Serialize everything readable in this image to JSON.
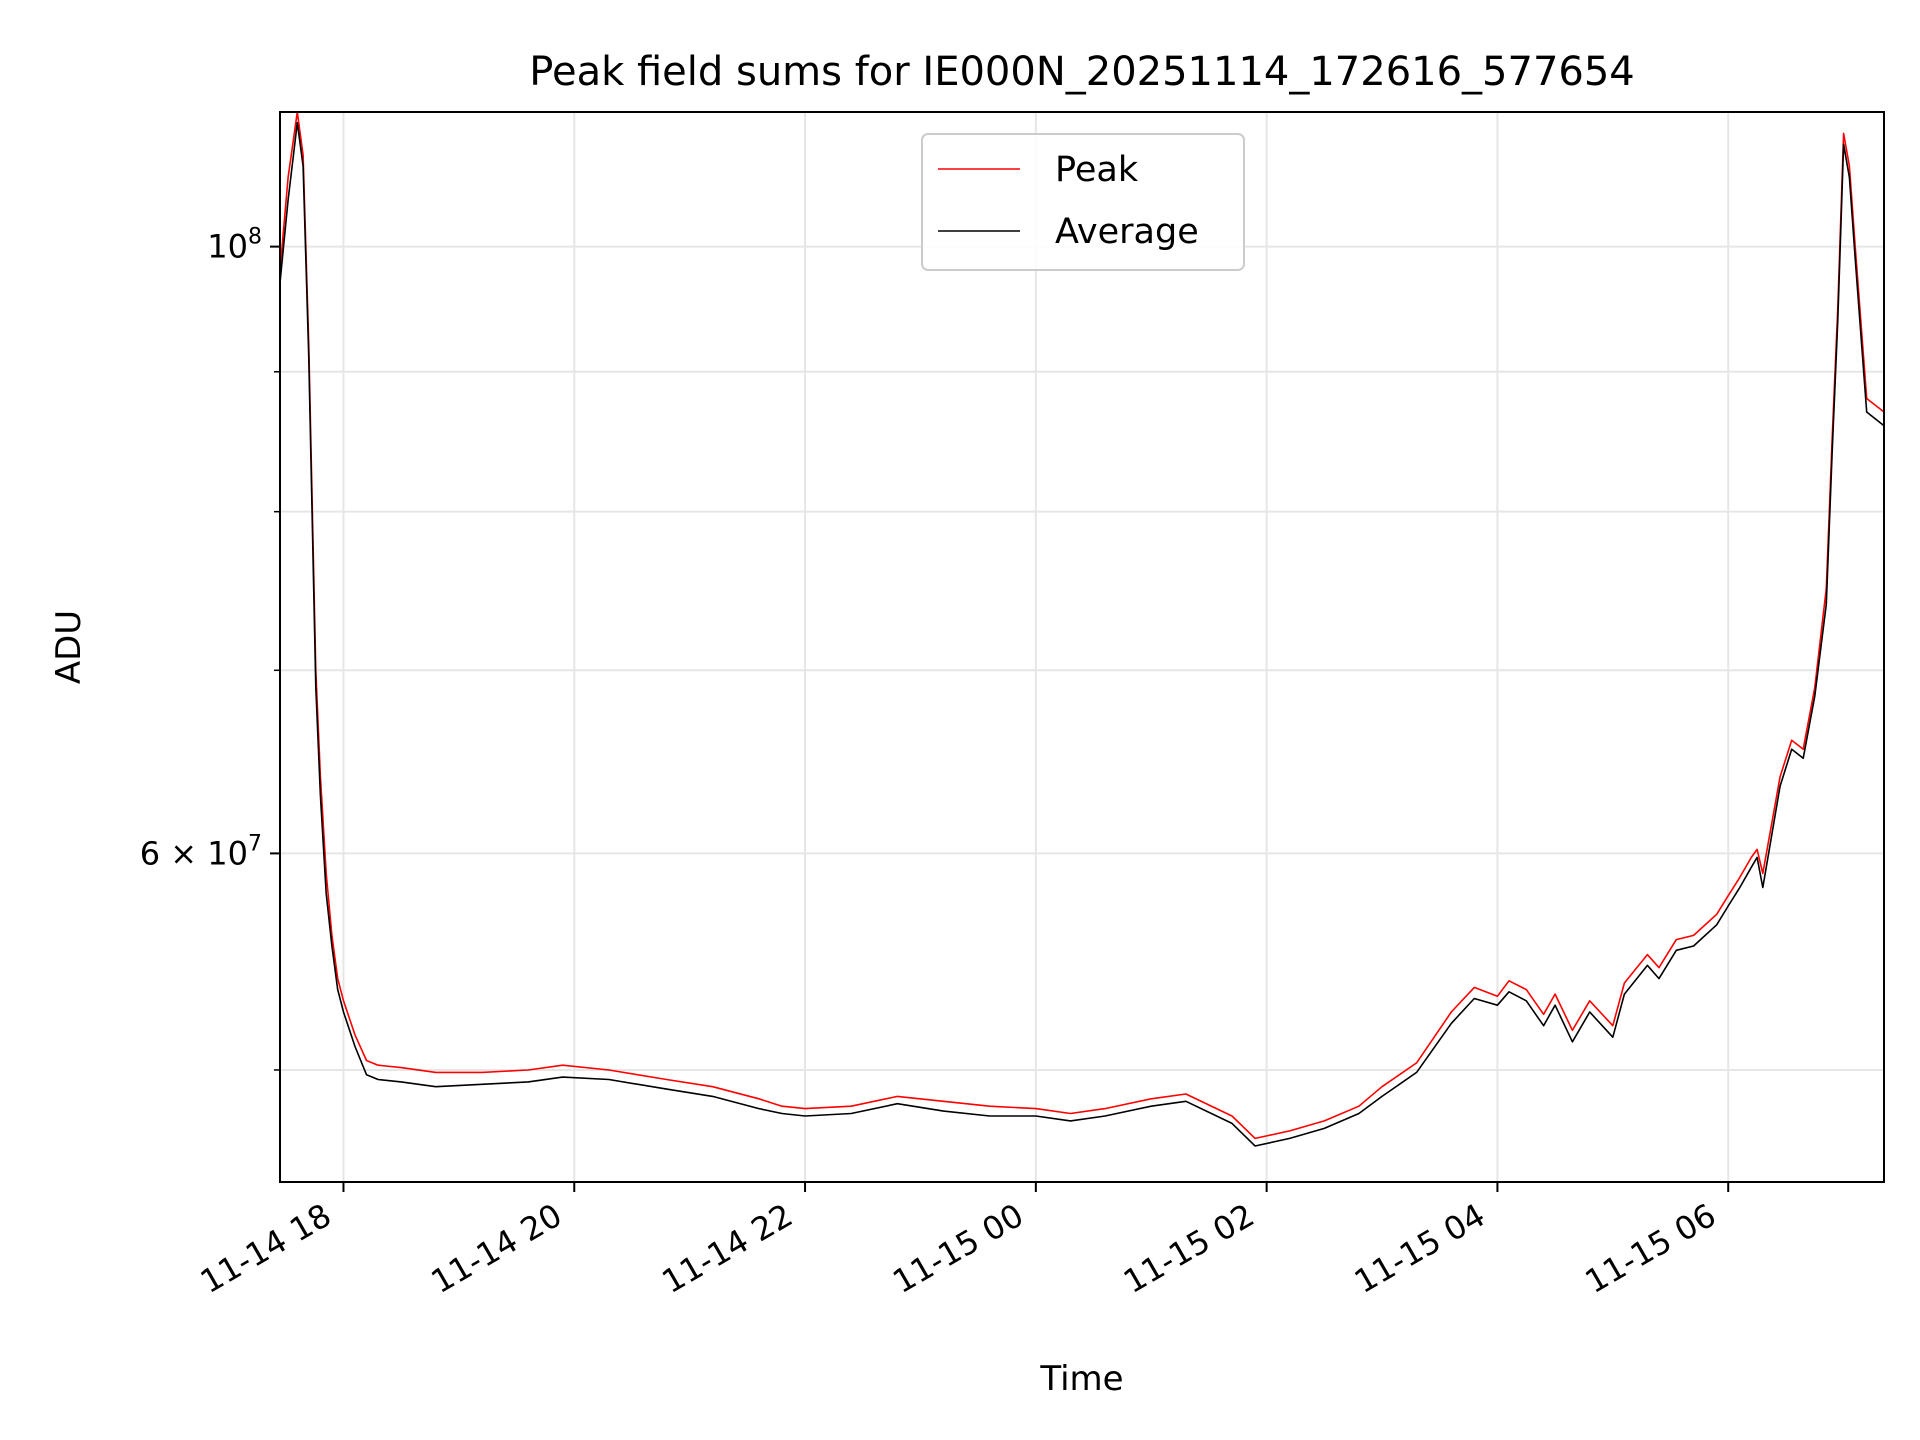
{
  "chart_data": {
    "type": "line",
    "title": "Peak field sums for IE000N_20251114_172616_577654",
    "xlabel": "Time",
    "ylabel": "ADU",
    "yscale": "log",
    "grid": true,
    "legend_position": "top-center",
    "x_unit": "hours since 11-14 00:00",
    "xlim": [
      17.45,
      31.35
    ],
    "ylim": [
      45500000,
      112000000
    ],
    "x_ticks": [
      {
        "value": 18,
        "label": "11-14 18"
      },
      {
        "value": 20,
        "label": "11-14 20"
      },
      {
        "value": 22,
        "label": "11-14 22"
      },
      {
        "value": 24,
        "label": "11-15 00"
      },
      {
        "value": 26,
        "label": "11-15 02"
      },
      {
        "value": 28,
        "label": "11-15 04"
      },
      {
        "value": 30,
        "label": "11-15 06"
      }
    ],
    "y_major_ticks": [
      {
        "value": 60000000,
        "base": "6",
        "times": "×",
        "pow": "10",
        "exp": "7"
      },
      {
        "value": 100000000,
        "base": "",
        "times": "",
        "pow": "10",
        "exp": "8"
      }
    ],
    "y_minor_ticks": [
      50000000,
      70000000,
      80000000,
      90000000
    ],
    "series": [
      {
        "name": "Peak",
        "color": "#ff0000",
        "x": [
          17.45,
          17.52,
          17.6,
          17.65,
          17.7,
          17.76,
          17.8,
          17.85,
          17.9,
          17.95,
          18.0,
          18.1,
          18.2,
          18.3,
          18.5,
          18.8,
          19.2,
          19.6,
          19.9,
          20.3,
          20.8,
          21.2,
          21.6,
          21.8,
          22.0,
          22.4,
          22.8,
          23.2,
          23.6,
          24.0,
          24.3,
          24.6,
          25.0,
          25.3,
          25.7,
          25.9,
          26.2,
          26.5,
          26.8,
          27.0,
          27.3,
          27.6,
          27.8,
          28.0,
          28.1,
          28.25,
          28.4,
          28.5,
          28.65,
          28.8,
          29.0,
          29.1,
          29.3,
          29.4,
          29.55,
          29.7,
          29.9,
          30.0,
          30.1,
          30.2,
          30.25,
          30.3,
          30.45,
          30.55,
          30.65,
          30.75,
          30.85,
          30.9,
          30.95,
          31.0,
          31.05,
          31.1,
          31.2,
          31.35
        ],
        "y": [
          98000000,
          106000000,
          112000000,
          108000000,
          92000000,
          70000000,
          64000000,
          59000000,
          56000000,
          54000000,
          53000000,
          51500000,
          50400000,
          50200000,
          50100000,
          49900000,
          49900000,
          50000000,
          50200000,
          50000000,
          49600000,
          49300000,
          48800000,
          48500000,
          48400000,
          48500000,
          48900000,
          48700000,
          48500000,
          48400000,
          48200000,
          48400000,
          48800000,
          49000000,
          48100000,
          47200000,
          47500000,
          47900000,
          48500000,
          49300000,
          50300000,
          52500000,
          53600000,
          53200000,
          53900000,
          53500000,
          52400000,
          53300000,
          51700000,
          53000000,
          51900000,
          53800000,
          55100000,
          54500000,
          55800000,
          56000000,
          57000000,
          57900000,
          58800000,
          59800000,
          60200000,
          59000000,
          64000000,
          66000000,
          65500000,
          69000000,
          75000000,
          85000000,
          95000000,
          110000000,
          107000000,
          100000000,
          88000000,
          87000000
        ]
      },
      {
        "name": "Average",
        "color": "#000000",
        "x": [
          17.45,
          17.52,
          17.6,
          17.65,
          17.7,
          17.76,
          17.8,
          17.85,
          17.9,
          17.95,
          18.0,
          18.1,
          18.2,
          18.3,
          18.5,
          18.8,
          19.2,
          19.6,
          19.9,
          20.3,
          20.8,
          21.2,
          21.6,
          21.8,
          22.0,
          22.4,
          22.8,
          23.2,
          23.6,
          24.0,
          24.3,
          24.6,
          25.0,
          25.3,
          25.7,
          25.9,
          26.2,
          26.5,
          26.8,
          27.0,
          27.3,
          27.6,
          27.8,
          28.0,
          28.1,
          28.25,
          28.4,
          28.5,
          28.65,
          28.8,
          29.0,
          29.1,
          29.3,
          29.4,
          29.55,
          29.7,
          29.9,
          30.0,
          30.1,
          30.2,
          30.25,
          30.3,
          30.45,
          30.55,
          30.65,
          30.75,
          30.85,
          30.9,
          30.95,
          31.0,
          31.05,
          31.1,
          31.2,
          31.35
        ],
        "y": [
          97000000,
          104000000,
          111000000,
          107000000,
          91000000,
          69000000,
          63000000,
          58000000,
          55500000,
          53500000,
          52500000,
          51000000,
          49800000,
          49600000,
          49500000,
          49300000,
          49400000,
          49500000,
          49700000,
          49600000,
          49200000,
          48900000,
          48400000,
          48200000,
          48100000,
          48200000,
          48600000,
          48300000,
          48100000,
          48100000,
          47900000,
          48100000,
          48500000,
          48700000,
          47800000,
          46900000,
          47200000,
          47600000,
          48200000,
          48900000,
          49900000,
          52000000,
          53100000,
          52800000,
          53400000,
          53000000,
          51900000,
          52800000,
          51200000,
          52500000,
          51400000,
          53300000,
          54600000,
          54000000,
          55300000,
          55500000,
          56500000,
          57400000,
          58300000,
          59300000,
          59800000,
          58300000,
          63500000,
          65500000,
          65000000,
          68500000,
          74000000,
          84000000,
          94000000,
          109000000,
          106000000,
          99000000,
          87000000,
          86000000
        ]
      }
    ]
  }
}
